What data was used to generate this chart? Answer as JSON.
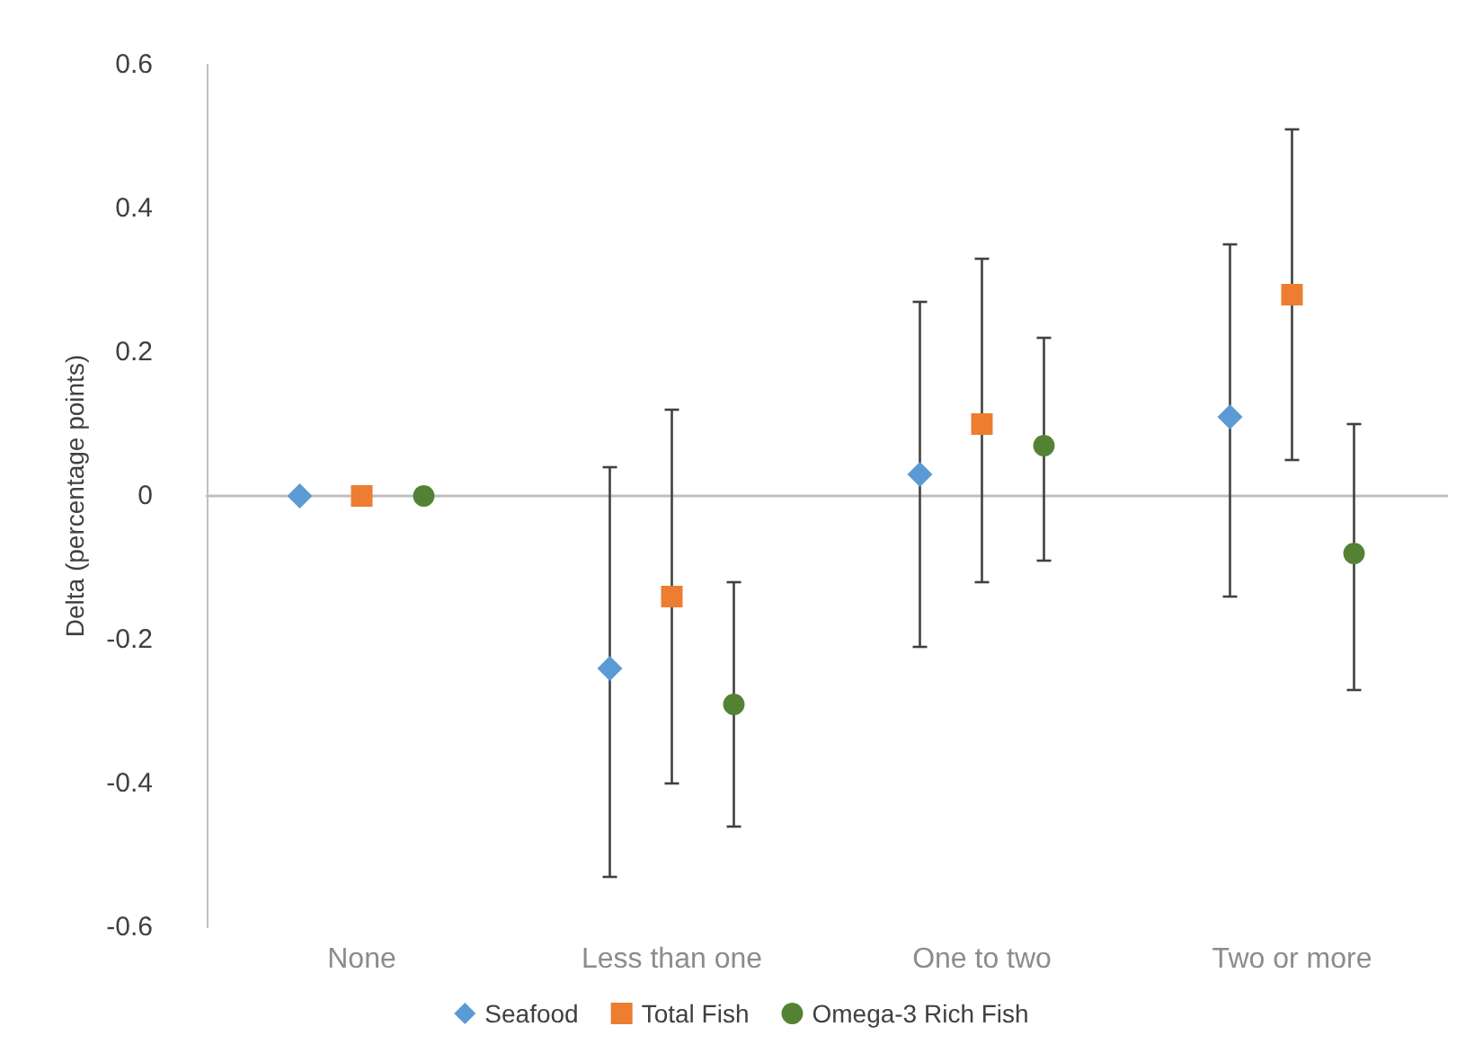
{
  "chart_data": {
    "type": "scatter",
    "ylabel": "Delta (percentage points)",
    "categories": [
      "None",
      "Less than one",
      "One to two",
      "Two or more"
    ],
    "series": [
      {
        "name": "Seafood",
        "color": "#5b9bd5",
        "marker": "diamond",
        "values": [
          0,
          -0.24,
          0.03,
          0.11
        ],
        "errors": [
          null,
          [
            -0.53,
            0.04
          ],
          [
            -0.21,
            0.27
          ],
          [
            -0.14,
            0.35
          ]
        ]
      },
      {
        "name": "Total Fish",
        "color": "#ed7d31",
        "marker": "square",
        "values": [
          0,
          -0.14,
          0.1,
          0.28
        ],
        "errors": [
          null,
          [
            -0.4,
            0.12
          ],
          [
            -0.12,
            0.33
          ],
          [
            0.05,
            0.51
          ]
        ]
      },
      {
        "name": "Omega-3 Rich Fish",
        "color": "#548235",
        "marker": "circle",
        "values": [
          0,
          -0.29,
          0.07,
          -0.08
        ],
        "errors": [
          null,
          [
            -0.46,
            -0.12
          ],
          [
            -0.09,
            0.22
          ],
          [
            -0.27,
            0.1
          ]
        ]
      }
    ],
    "ylim": [
      -0.6,
      0.6
    ],
    "yticks": [
      -0.6,
      -0.4,
      -0.2,
      0,
      0.2,
      0.4,
      0.6
    ],
    "legend": "bottom"
  }
}
